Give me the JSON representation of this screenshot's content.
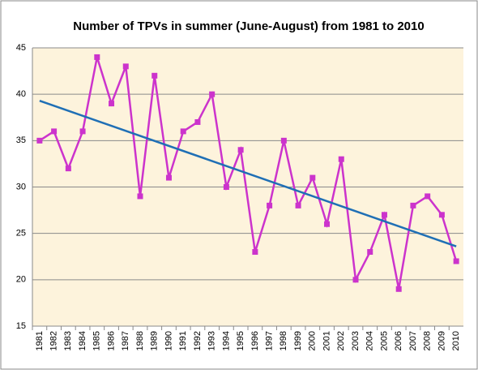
{
  "chart_data": {
    "type": "line",
    "title": "Number of TPVs in summer (June-August) from 1981 to 2010",
    "categories": [
      "1981",
      "1982",
      "1983",
      "1984",
      "1985",
      "1986",
      "1987",
      "1988",
      "1989",
      "1990",
      "1991",
      "1992",
      "1993",
      "1994",
      "1995",
      "1996",
      "1997",
      "1998",
      "1999",
      "2000",
      "2001",
      "2002",
      "2003",
      "2004",
      "2005",
      "2006",
      "2007",
      "2008",
      "2009",
      "2010"
    ],
    "series": [
      {
        "color": "#cc33cc",
        "values": [
          35,
          36,
          32,
          36,
          44,
          39,
          43,
          29,
          42,
          31,
          36,
          37,
          40,
          30,
          34,
          23,
          28,
          35,
          28,
          31,
          26,
          33,
          20,
          23,
          27,
          19,
          28,
          29,
          27,
          22
        ]
      }
    ],
    "trendline": {
      "color": "#1f6fb5",
      "values": [
        39.3,
        23.6
      ]
    },
    "ylim": [
      15,
      45
    ],
    "yticks": [
      15,
      20,
      25,
      30,
      35,
      40,
      45
    ],
    "grid": true
  }
}
